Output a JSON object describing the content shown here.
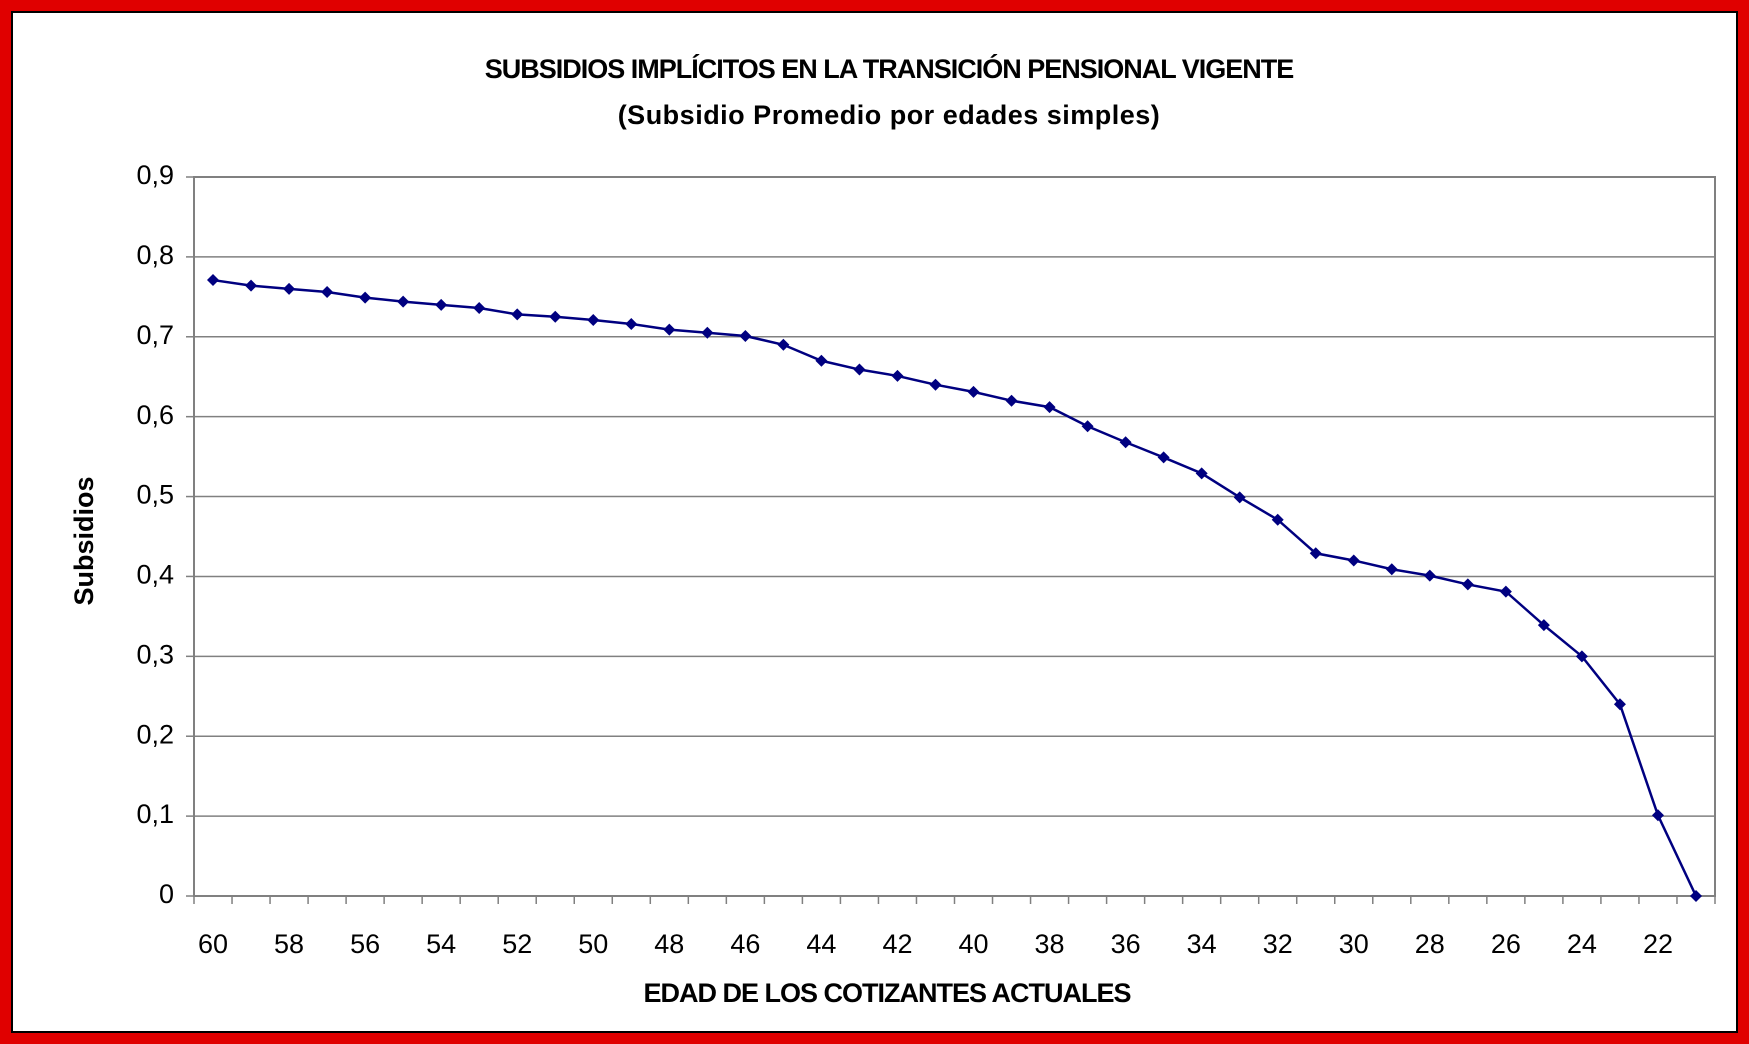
{
  "chart_data": {
    "type": "line",
    "title": "SUBSIDIOS IMPLÍCITOS EN LA TRANSICIÓN PENSIONAL VIGENTE",
    "subtitle": "(Subsidio Promedio por edades simples)",
    "x_label": "EDAD DE LOS COTIZANTES ACTUALES",
    "y_label": "Subsidios",
    "categories": [
      "60",
      null,
      "58",
      null,
      "56",
      null,
      "54",
      null,
      "52",
      null,
      "50",
      null,
      "48",
      null,
      "46",
      null,
      "44",
      null,
      "42",
      null,
      "40",
      null,
      "38",
      null,
      "36",
      null,
      "34",
      null,
      "32",
      null,
      "30",
      null,
      "28",
      null,
      "26",
      null,
      "24",
      null,
      "22",
      null
    ],
    "series": [
      {
        "name": "Subsidios",
        "color": "#000080",
        "values": [
          0.771,
          0.764,
          0.76,
          0.756,
          0.749,
          0.744,
          0.74,
          0.736,
          0.728,
          0.725,
          0.721,
          0.716,
          0.709,
          0.705,
          0.701,
          0.69,
          0.67,
          0.659,
          0.651,
          0.64,
          0.631,
          0.62,
          0.612,
          0.588,
          0.568,
          0.549,
          0.529,
          0.499,
          0.471,
          0.429,
          0.42,
          0.409,
          0.401,
          0.39,
          0.381,
          0.339,
          0.3,
          0.24,
          0.101,
          0
        ]
      }
    ],
    "ylim": [
      0,
      0.9
    ],
    "yticks": [
      0,
      {
        "value": 0.1,
        "label": "0,1"
      },
      {
        "value": 0.2,
        "label": "0,2"
      },
      {
        "value": 0.3,
        "label": "0,3"
      },
      {
        "value": 0.4,
        "label": "0,4"
      },
      {
        "value": 0.5,
        "label": "0,5"
      },
      {
        "value": 0.6,
        "label": "0,6"
      },
      {
        "value": 0.7,
        "label": "0,7"
      },
      {
        "value": 0.8,
        "label": "0,8"
      },
      {
        "value": 0.9,
        "label": "0,9"
      }
    ],
    "grid": true
  }
}
